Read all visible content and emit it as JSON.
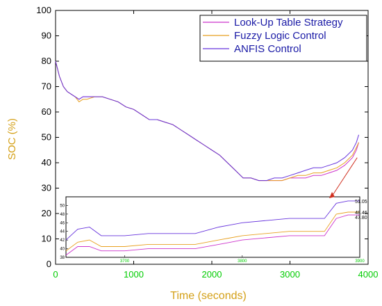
{
  "chart_data": {
    "type": "line",
    "title": "",
    "xlabel": "Time (seconds)",
    "ylabel": "SOC (%)",
    "xlim": [
      0,
      4000
    ],
    "ylim": [
      0,
      100
    ],
    "x_ticks": [
      0,
      1000,
      2000,
      3000,
      4000
    ],
    "y_ticks": [
      0,
      10,
      20,
      30,
      40,
      50,
      60,
      70,
      80,
      90,
      100
    ],
    "grid": false,
    "legend_position": "top-right",
    "x": [
      0,
      50,
      100,
      150,
      200,
      250,
      300,
      350,
      400,
      500,
      600,
      700,
      800,
      900,
      1000,
      1100,
      1200,
      1300,
      1400,
      1500,
      1600,
      1700,
      1800,
      1900,
      2000,
      2100,
      2200,
      2300,
      2400,
      2500,
      2600,
      2700,
      2800,
      2900,
      3000,
      3100,
      3200,
      3300,
      3400,
      3500,
      3600,
      3700,
      3800,
      3850,
      3880
    ],
    "series": [
      {
        "name": "Look-Up Table Strategy",
        "color": "#cc33cc",
        "values": [
          80,
          74,
          70,
          68,
          67,
          66,
          65,
          66,
          66,
          66,
          66,
          65,
          64,
          62,
          61,
          59,
          57,
          57,
          56,
          55,
          53,
          51,
          49,
          47,
          45,
          43,
          40,
          37,
          34,
          34,
          33,
          33,
          33,
          33,
          34,
          34,
          34,
          35,
          35,
          36,
          37,
          39,
          42,
          45,
          48
        ]
      },
      {
        "name": "Fuzzy Logic Control",
        "color": "#e8a020",
        "values": [
          80,
          74,
          70,
          68,
          67,
          66,
          64,
          65,
          65,
          66,
          66,
          65,
          64,
          62,
          61,
          59,
          57,
          57,
          56,
          55,
          53,
          51,
          49,
          47,
          45,
          43,
          40,
          37,
          34,
          34,
          33,
          33,
          33,
          33,
          34,
          35,
          35,
          36,
          36,
          37,
          38,
          40,
          43,
          46,
          48
        ]
      },
      {
        "name": "ANFIS Control",
        "color": "#6633dd",
        "values": [
          80,
          74,
          70,
          68,
          67,
          66,
          65,
          66,
          66,
          66,
          66,
          65,
          64,
          62,
          61,
          59,
          57,
          57,
          56,
          55,
          53,
          51,
          49,
          47,
          45,
          43,
          40,
          37,
          34,
          34,
          33,
          33,
          34,
          34,
          35,
          36,
          37,
          38,
          38,
          39,
          40,
          42,
          45,
          48,
          51
        ]
      }
    ],
    "inset": {
      "xlim": [
        3650,
        3900
      ],
      "ylim": [
        38,
        52
      ],
      "x_ticks": [
        3700,
        3800,
        3900
      ],
      "y_ticks": [
        38,
        40,
        42,
        44,
        46,
        48,
        50
      ],
      "x": [
        3650,
        3660,
        3670,
        3680,
        3690,
        3700,
        3720,
        3740,
        3760,
        3780,
        3790,
        3800,
        3820,
        3840,
        3860,
        3870,
        3880,
        3890,
        3900
      ],
      "series": [
        {
          "name": "Look-Up Table Strategy",
          "color": "#cc33cc",
          "values": [
            38.5,
            40.5,
            40.5,
            39.5,
            39.5,
            39.5,
            40.0,
            40.0,
            40.0,
            41.0,
            41.5,
            42.0,
            42.5,
            43.0,
            43.0,
            43.0,
            47.0,
            47.8,
            47.8
          ]
        },
        {
          "name": "Fuzzy Logic Control",
          "color": "#e8a020",
          "values": [
            39.5,
            41.5,
            42.0,
            40.5,
            40.5,
            40.5,
            41.0,
            41.0,
            41.0,
            42.0,
            42.5,
            43.0,
            43.5,
            44.0,
            44.0,
            44.0,
            48.0,
            48.46,
            48.46
          ]
        },
        {
          "name": "ANFIS Control",
          "color": "#6633dd",
          "values": [
            42.0,
            44.5,
            45.0,
            43.0,
            43.0,
            43.0,
            43.5,
            43.5,
            43.5,
            45.0,
            45.5,
            46.0,
            46.5,
            47.0,
            47.0,
            47.0,
            50.5,
            51.05,
            51.05
          ]
        }
      ],
      "annotations": [
        "51.05",
        "48.46",
        "47.80"
      ]
    }
  }
}
